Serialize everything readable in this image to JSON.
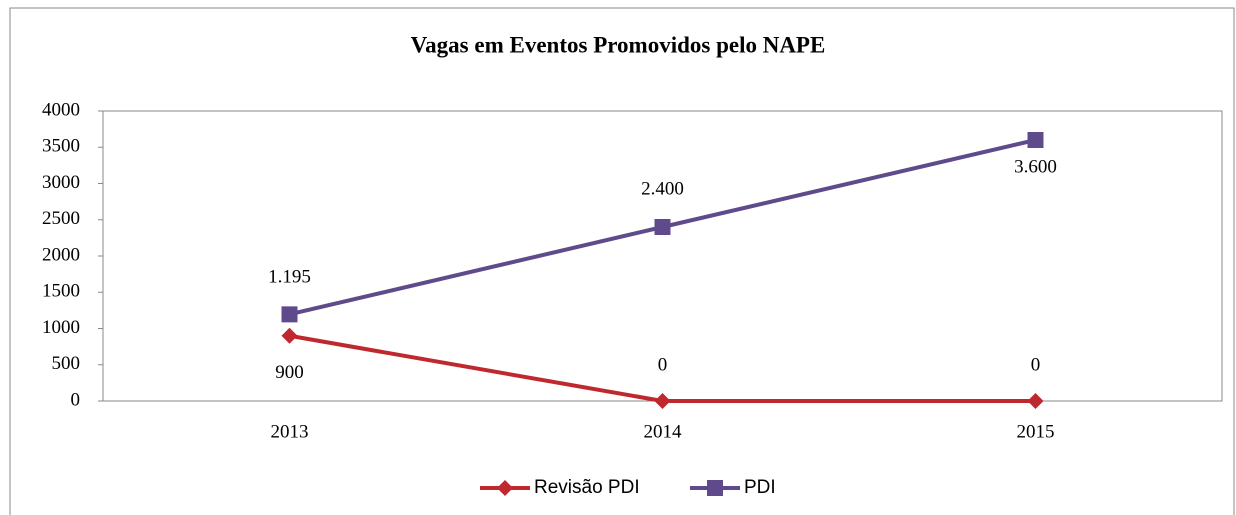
{
  "chart_data": {
    "type": "line",
    "title": "Vagas em Eventos Promovidos pelo NAPE",
    "categories": [
      "2013",
      "2014",
      "2015"
    ],
    "series": [
      {
        "name": "Revisão PDI",
        "color": "#c0282f",
        "values": [
          900,
          0,
          0
        ]
      },
      {
        "name": "PDI",
        "color": "#5f4b8b",
        "values": [
          1195,
          2400,
          3600
        ],
        "value_labels": [
          "1.195",
          "2.400",
          "3.600"
        ]
      }
    ],
    "ylim": [
      0,
      4000
    ],
    "yticks": [
      0,
      500,
      1000,
      1500,
      2000,
      2500,
      3000,
      3500,
      4000
    ],
    "legend": "bottom"
  }
}
